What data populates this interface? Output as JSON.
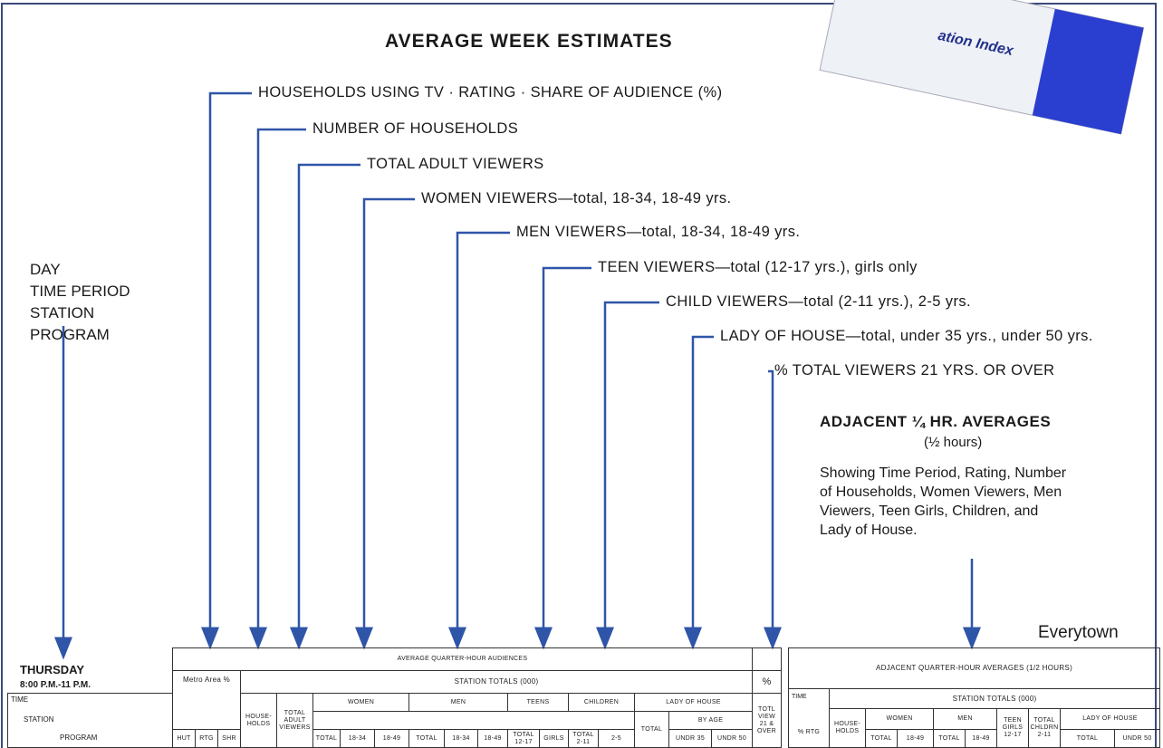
{
  "title": "AVERAGE WEEK ESTIMATES",
  "book_text": "ation Index",
  "callouts": [
    "HOUSEHOLDS USING TV · RATING · SHARE OF AUDIENCE (%)",
    "NUMBER OF HOUSEHOLDS",
    "TOTAL ADULT VIEWERS",
    "WOMEN VIEWERS—total, 18-34, 18-49 yrs.",
    "MEN VIEWERS—total, 18-34, 18-49 yrs.",
    "TEEN VIEWERS—total (12-17 yrs.), girls only",
    "CHILD VIEWERS—total (2-11 yrs.), 2-5 yrs.",
    "LADY OF HOUSE—total, under 35 yrs., under 50 yrs.",
    "% TOTAL VIEWERS 21 YRS. OR OVER"
  ],
  "left_labels": [
    "DAY",
    "TIME PERIOD",
    "STATION",
    "PROGRAM"
  ],
  "adjacent": {
    "title": "ADJACENT ¼ HR. AVERAGES",
    "subtitle": "(½ hours)",
    "text": "Showing Time Period, Rating, Number of Households, Women Viewers, Men Viewers, Teen Girls, Children, and Lady of House."
  },
  "market": "Everytown",
  "day": "THURSDAY",
  "time": "8:00 P.M.-11 P.M.",
  "left_box": [
    "TIME",
    "STATION",
    "PROGRAM"
  ],
  "main_table": {
    "title": "AVERAGE QUARTER-HOUR AUDIENCES",
    "totals": "STATION TOTALS (000)",
    "pct": "%",
    "metro": "Metro Area %",
    "groups": [
      "HOUSE-HOLDS",
      "TOTAL ADULT VIEWERS",
      "WOMEN",
      "MEN",
      "TEENS",
      "CHILDREN",
      "LADY OF HOUSE",
      "TOTL VIEW 21 & OVER"
    ],
    "by_age": "BY AGE",
    "columns": [
      "HUT",
      "RTG",
      "SHR",
      "TOTAL",
      "18-34",
      "18-49",
      "TOTAL",
      "18-34",
      "18-49",
      "TOTAL 12-17",
      "GIRLS",
      "TOTAL 2-11",
      "2-5",
      "TOTAL",
      "UNDR 35",
      "UNDR 50"
    ]
  },
  "adj_table": {
    "title": "ADJACENT QUARTER-HOUR AVERAGES (1/2 HOURS)",
    "time": "TIME",
    "totals": "STATION TOTALS (000)",
    "rtg": "% RTG",
    "groups": [
      "HOUSE-HOLDS",
      "WOMEN",
      "MEN",
      "TEEN GIRLS 12-17",
      "TOTAL CHLDRN 2-11",
      "LADY OF HOUSE"
    ],
    "columns": [
      "TOTAL",
      "18-49",
      "TOTAL",
      "18-49",
      "TOTAL",
      "UNDR 50"
    ]
  }
}
